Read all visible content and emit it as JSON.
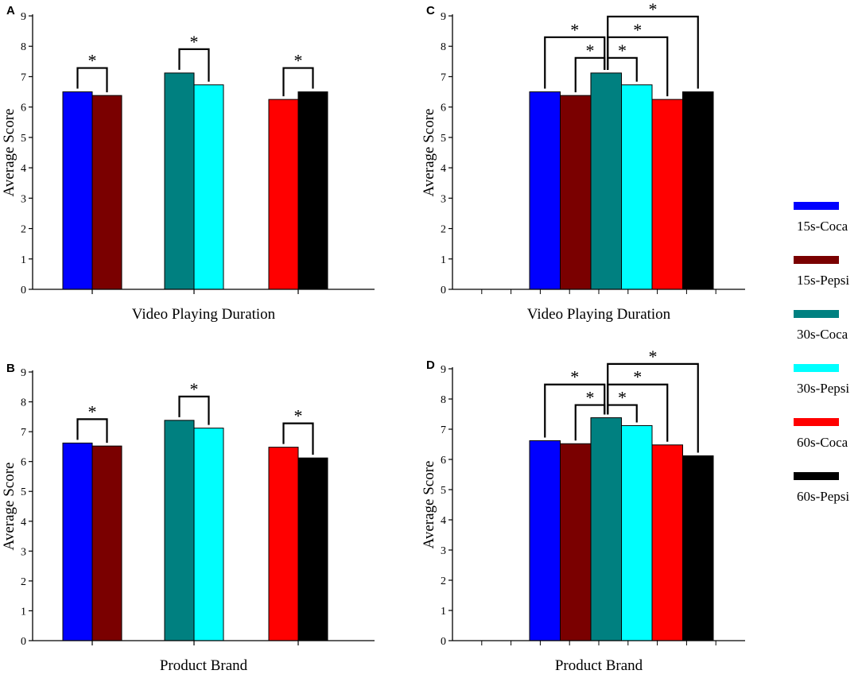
{
  "legend": {
    "items": [
      {
        "label": "15s-Coca",
        "color": "#0000FF"
      },
      {
        "label": "15s-Pepsi",
        "color": "#7A0000"
      },
      {
        "label": "30s-Coca",
        "color": "#008080"
      },
      {
        "label": "30s-Pepsi",
        "color": "#00FFFF"
      },
      {
        "label": "60s-Coca",
        "color": "#FF0000"
      },
      {
        "label": "60s-Pepsi",
        "color": "#000000"
      }
    ]
  },
  "chart_data": [
    {
      "panel": "A",
      "type": "bar",
      "title": "",
      "xlabel": "Video Playing Duration",
      "ylabel": "Average Score",
      "ylim": [
        0,
        9
      ],
      "yticks": [
        "0",
        "1",
        "2",
        "3",
        "4",
        "5",
        "6",
        "7",
        "8",
        "9"
      ],
      "layout": "grouped",
      "series": [
        {
          "name": "15s-Coca",
          "value": 6.5
        },
        {
          "name": "15s-Pepsi",
          "value": 6.38
        },
        {
          "name": "30s-Coca",
          "value": 7.12
        },
        {
          "name": "30s-Pepsi",
          "value": 6.73
        },
        {
          "name": "60s-Coca",
          "value": 6.25
        },
        {
          "name": "60s-Pepsi",
          "value": 6.5
        }
      ],
      "significance": [
        {
          "from": 0,
          "to": 1,
          "label": "*"
        },
        {
          "from": 2,
          "to": 3,
          "label": "*"
        },
        {
          "from": 4,
          "to": 5,
          "label": "*"
        }
      ]
    },
    {
      "panel": "B",
      "type": "bar",
      "title": "",
      "xlabel": "Product Brand",
      "ylabel": "Average Score",
      "ylim": [
        0,
        9
      ],
      "yticks": [
        "0",
        "1",
        "2",
        "3",
        "4",
        "5",
        "6",
        "7",
        "8",
        "9"
      ],
      "layout": "grouped",
      "series": [
        {
          "name": "15s-Coca",
          "value": 6.62
        },
        {
          "name": "15s-Pepsi",
          "value": 6.52
        },
        {
          "name": "30s-Coca",
          "value": 7.38
        },
        {
          "name": "30s-Pepsi",
          "value": 7.12
        },
        {
          "name": "60s-Coca",
          "value": 6.48
        },
        {
          "name": "60s-Pepsi",
          "value": 6.12
        }
      ],
      "significance": [
        {
          "from": 0,
          "to": 1,
          "label": "*"
        },
        {
          "from": 2,
          "to": 3,
          "label": "*"
        },
        {
          "from": 4,
          "to": 5,
          "label": "*"
        }
      ]
    },
    {
      "panel": "C",
      "type": "bar",
      "title": "",
      "xlabel": "Video Playing Duration",
      "ylabel": "Average Score",
      "ylim": [
        0,
        9
      ],
      "yticks": [
        "0",
        "1",
        "2",
        "3",
        "4",
        "5",
        "6",
        "7",
        "8",
        "9"
      ],
      "layout": "contiguous",
      "series": [
        {
          "name": "15s-Coca",
          "value": 6.5
        },
        {
          "name": "15s-Pepsi",
          "value": 6.38
        },
        {
          "name": "30s-Coca",
          "value": 7.12
        },
        {
          "name": "30s-Pepsi",
          "value": 6.73
        },
        {
          "name": "60s-Coca",
          "value": 6.25
        },
        {
          "name": "60s-Pepsi",
          "value": 6.5
        }
      ],
      "significance": [
        {
          "from": 2,
          "to": 0,
          "label": "*"
        },
        {
          "from": 2,
          "to": 1,
          "label": "*"
        },
        {
          "from": 2,
          "to": 3,
          "label": "*"
        },
        {
          "from": 2,
          "to": 4,
          "label": "*"
        },
        {
          "from": 2,
          "to": 5,
          "label": "*"
        }
      ]
    },
    {
      "panel": "D",
      "type": "bar",
      "title": "",
      "xlabel": "Product Brand",
      "ylabel": "Average Score",
      "ylim": [
        0,
        9
      ],
      "yticks": [
        "0",
        "1",
        "2",
        "3",
        "4",
        "5",
        "6",
        "7",
        "8",
        "9"
      ],
      "layout": "contiguous",
      "series": [
        {
          "name": "15s-Coca",
          "value": 6.62
        },
        {
          "name": "15s-Pepsi",
          "value": 6.52
        },
        {
          "name": "30s-Coca",
          "value": 7.38
        },
        {
          "name": "30s-Pepsi",
          "value": 7.12
        },
        {
          "name": "60s-Coca",
          "value": 6.48
        },
        {
          "name": "60s-Pepsi",
          "value": 6.12
        }
      ],
      "significance": [
        {
          "from": 2,
          "to": 0,
          "label": "*"
        },
        {
          "from": 2,
          "to": 1,
          "label": "*"
        },
        {
          "from": 2,
          "to": 3,
          "label": "*"
        },
        {
          "from": 2,
          "to": 4,
          "label": "*"
        },
        {
          "from": 2,
          "to": 5,
          "label": "*"
        }
      ]
    }
  ]
}
